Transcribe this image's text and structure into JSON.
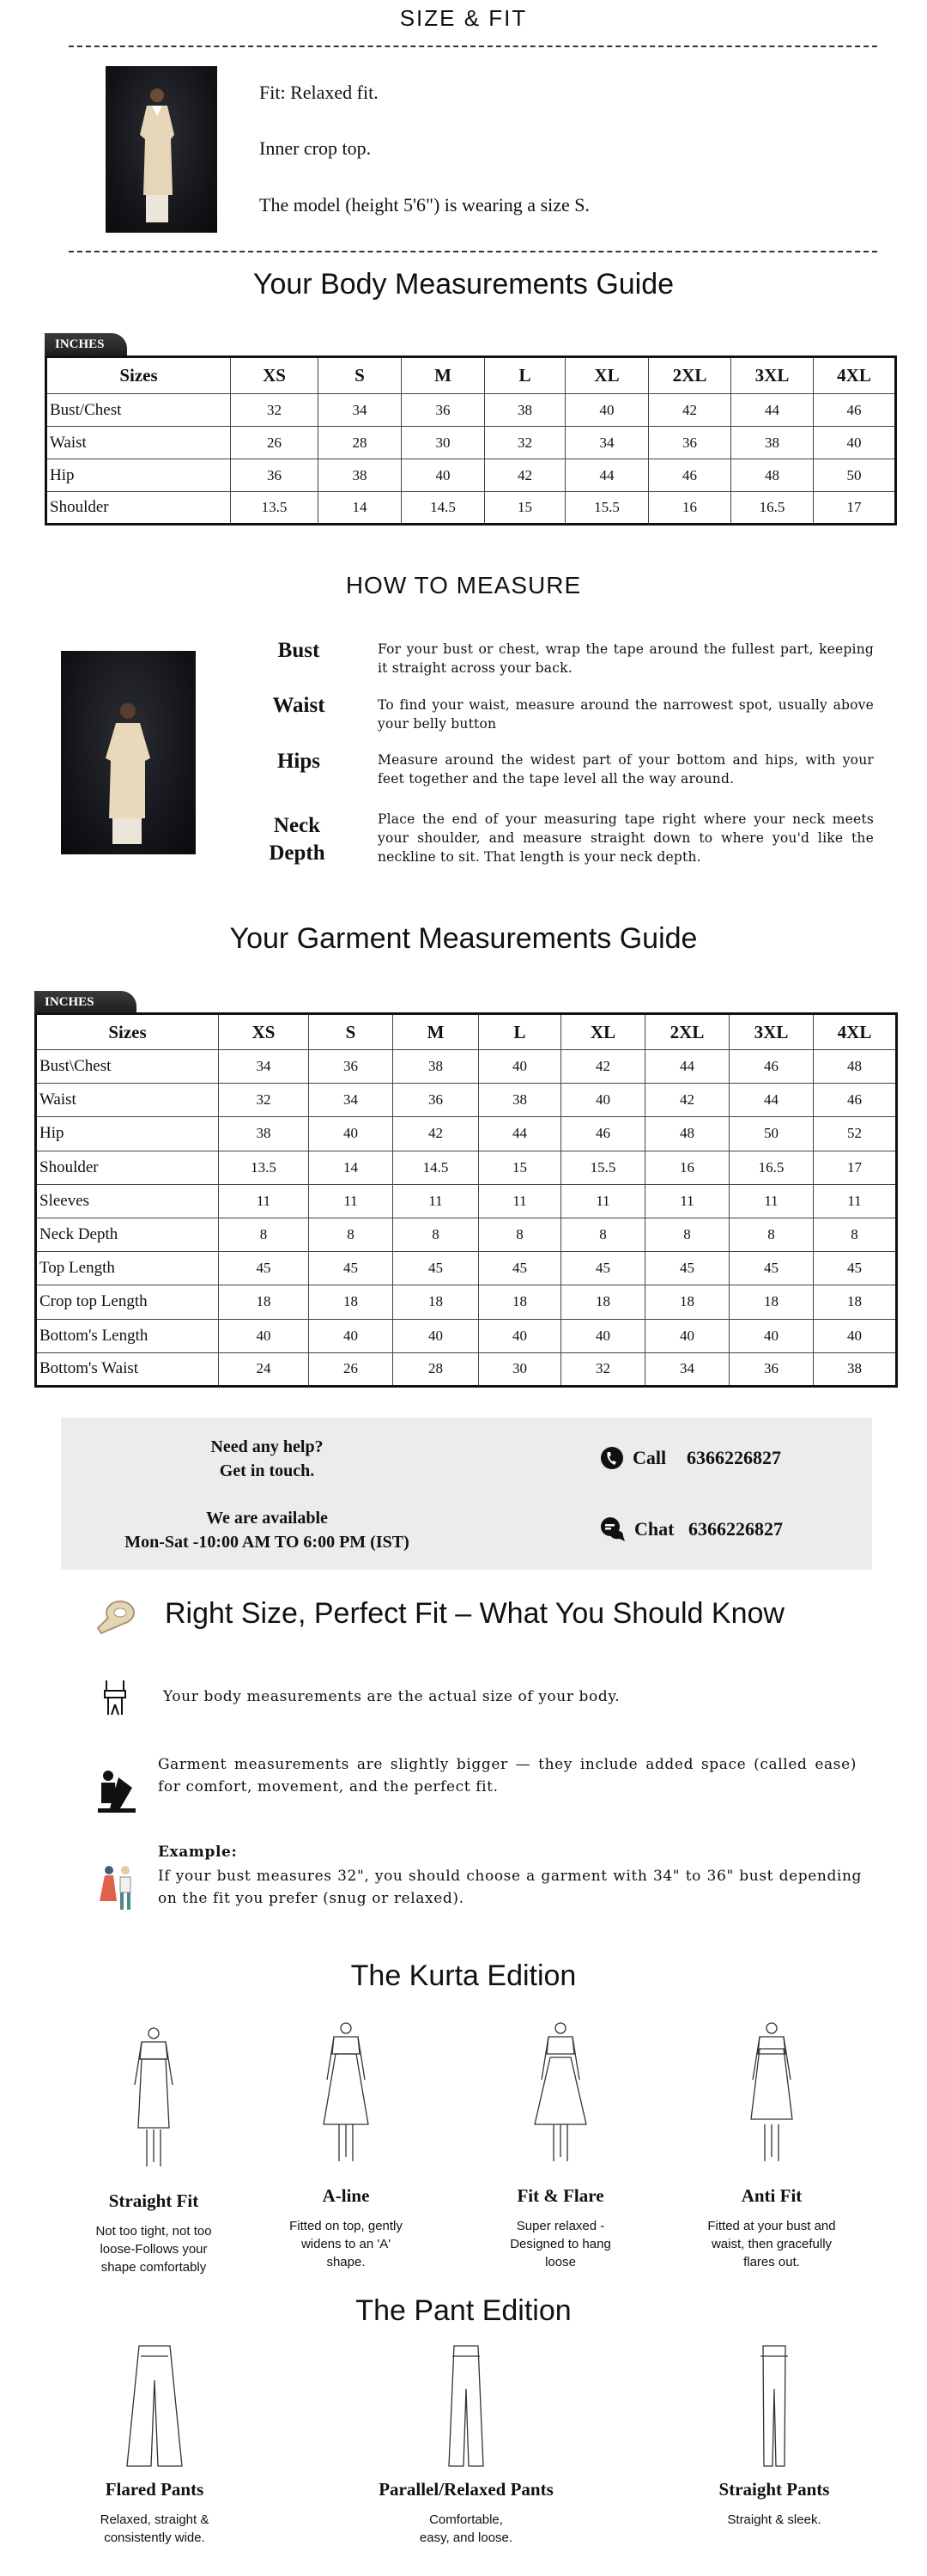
{
  "size_fit": {
    "title": "SIZE & FIT",
    "lines": [
      "Fit: Relaxed fit.",
      "Inner crop top.",
      "The model (height 5'6\") is wearing a size S."
    ]
  },
  "body_guide": {
    "title": "Your Body Measurements Guide",
    "unit_tab": "INCHES",
    "headers": [
      "Sizes",
      "XS",
      "S",
      "M",
      "L",
      "XL",
      "2XL",
      "3XL",
      "4XL"
    ],
    "rows": [
      [
        "Bust/Chest",
        "32",
        "34",
        "36",
        "38",
        "40",
        "42",
        "44",
        "46"
      ],
      [
        "Waist",
        "26",
        "28",
        "30",
        "32",
        "34",
        "36",
        "38",
        "40"
      ],
      [
        "Hip",
        "36",
        "38",
        "40",
        "42",
        "44",
        "46",
        "48",
        "50"
      ],
      [
        "Shoulder",
        "13.5",
        "14",
        "14.5",
        "15",
        "15.5",
        "16",
        "16.5",
        "17"
      ]
    ]
  },
  "how_to_measure": {
    "title": "HOW TO MEASURE",
    "items": [
      {
        "label": "Bust",
        "desc": "For your bust or chest, wrap the tape around the fullest part, keeping it straight across your back."
      },
      {
        "label": "Waist",
        "desc": "To find your waist, measure around the narrowest spot, usually above your belly button"
      },
      {
        "label": "Hips",
        "desc": "Measure around the widest part of your bottom and hips, with your feet together and the tape level all the way around."
      },
      {
        "label": "Neck Depth",
        "desc": "Place the end of your measuring tape right where your neck meets your shoulder, and measure straight down to where you'd like the neckline to sit. That length is your neck depth."
      }
    ]
  },
  "garment_guide": {
    "title": "Your Garment Measurements Guide",
    "unit_tab": "INCHES",
    "headers": [
      "Sizes",
      "XS",
      "S",
      "M",
      "L",
      "XL",
      "2XL",
      "3XL",
      "4XL"
    ],
    "rows": [
      [
        "Bust\\Chest",
        "34",
        "36",
        "38",
        "40",
        "42",
        "44",
        "46",
        "48"
      ],
      [
        "Waist",
        "32",
        "34",
        "36",
        "38",
        "40",
        "42",
        "44",
        "46"
      ],
      [
        "Hip",
        "38",
        "40",
        "42",
        "44",
        "46",
        "48",
        "50",
        "52"
      ],
      [
        "Shoulder",
        "13.5",
        "14",
        "14.5",
        "15",
        "15.5",
        "16",
        "16.5",
        "17"
      ],
      [
        "Sleeves",
        "11",
        "11",
        "11",
        "11",
        "11",
        "11",
        "11",
        "11"
      ],
      [
        "Neck Depth",
        "8",
        "8",
        "8",
        "8",
        "8",
        "8",
        "8",
        "8"
      ],
      [
        "Top Length",
        "45",
        "45",
        "45",
        "45",
        "45",
        "45",
        "45",
        "45"
      ],
      [
        "Crop top Length",
        "18",
        "18",
        "18",
        "18",
        "18",
        "18",
        "18",
        "18"
      ],
      [
        "Bottom's Length",
        "40",
        "40",
        "40",
        "40",
        "40",
        "40",
        "40",
        "40"
      ],
      [
        "Bottom's Waist",
        "24",
        "26",
        "28",
        "30",
        "32",
        "34",
        "36",
        "38"
      ]
    ]
  },
  "help": {
    "line1": "Need any help?",
    "line2": "Get in touch.",
    "line3": "We are available",
    "line4": "Mon-Sat -10:00 AM TO 6:00 PM (IST)",
    "call_label": "Call",
    "call_number": "6366226827",
    "chat_label": "Chat",
    "chat_number": "6366226827"
  },
  "know": {
    "title": "Right Size, Perfect Fit – What You Should Know",
    "body": "Your body measurements are the actual size of your body.",
    "garment": "Garment measurements are slightly bigger — they include added space (called ease) for comfort, movement, and the perfect fit.",
    "example_label": "Example:",
    "example": "If your bust measures 32\", you should choose a garment with 34\" to 36\" bust depending on the fit you prefer (snug or relaxed)."
  },
  "kurta": {
    "title": "The Kurta Edition",
    "items": [
      {
        "label": "Straight Fit",
        "desc": "Not too tight, not too loose-Follows your shape comfortably"
      },
      {
        "label": "A-line",
        "desc": "Fitted on top, gently widens to an 'A' shape."
      },
      {
        "label": "Fit & Flare",
        "desc": "Super relaxed - Designed to hang loose"
      },
      {
        "label": "Anti Fit",
        "desc": "Fitted at your bust and waist, then gracefully flares out."
      }
    ]
  },
  "pant": {
    "title": "The Pant Edition",
    "items": [
      {
        "label": "Flared Pants",
        "desc": "Relaxed, straight & consistently wide."
      },
      {
        "label": "Parallel/Relaxed Pants",
        "desc": "Comfortable, easy, and loose."
      },
      {
        "label": "Straight Pants",
        "desc": "Straight & sleek."
      }
    ]
  },
  "colors": {
    "help_bg": "#ececec",
    "tab_bg": "#2a2a2a",
    "text": "#111111"
  }
}
